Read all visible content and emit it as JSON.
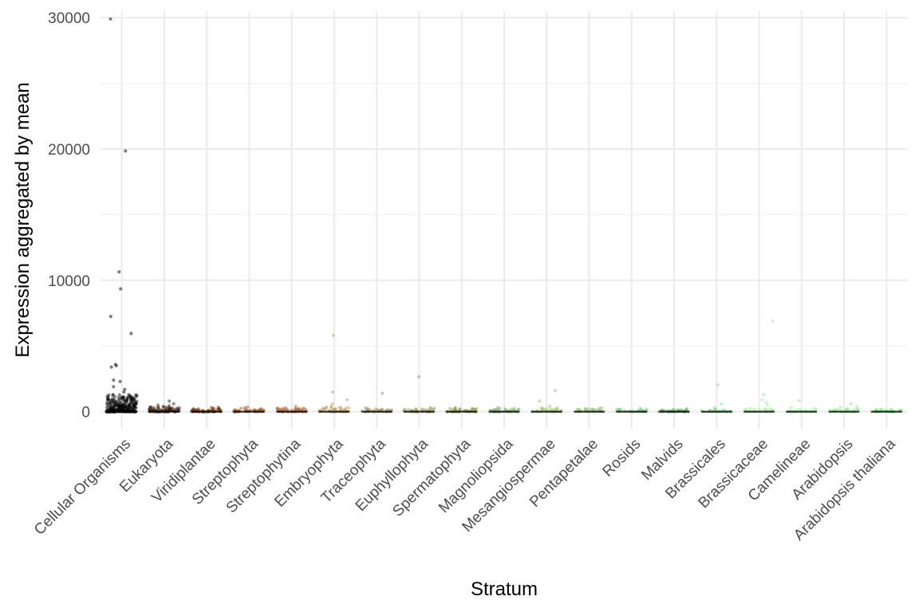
{
  "chart_data": {
    "type": "scatter",
    "subtype": "jitter-strip",
    "xlabel": "Stratum",
    "ylabel": "Expression aggregated by mean",
    "ylim": [
      -1300,
      30500
    ],
    "yticks": [
      0,
      10000,
      20000,
      30000
    ],
    "ytick_labels": [
      "0",
      "10000",
      "20000",
      "30000"
    ],
    "grid": true,
    "legend": "none",
    "categories": [
      "Cellular Organisms",
      "Eukaryota",
      "Viridiplantae",
      "Streptophyta",
      "Streptophytina",
      "Embryophyta",
      "Traceophyta",
      "Euphyllophyta",
      "Spermatophyta",
      "Magnoliopsida",
      "Mesangiospermae",
      "Pentapetalae",
      "Rosids",
      "Malvids",
      "Brassicales",
      "Brassicaceae",
      "Camelineae",
      "Arabidopsis",
      "Arabidopsis thaliana"
    ],
    "colors": [
      "#000000",
      "#3a200c",
      "#6b3510",
      "#9a5525",
      "#a8693c",
      "#c2a070",
      "#a09068",
      "#9a9a5e",
      "#8a9a5a",
      "#7fa870",
      "#a0c070",
      "#90c080",
      "#80c888",
      "#50a050",
      "#90d890",
      "#a8e6a0",
      "#a0e8a0",
      "#90e890",
      "#70e070"
    ],
    "outliers": [
      [
        29900,
        19850,
        10650,
        9350,
        7250,
        5950,
        3600,
        3500,
        3400,
        2400,
        2300,
        1900,
        1700,
        1500,
        1300,
        1200,
        1100,
        1000
      ],
      [
        800,
        600,
        500,
        450,
        400,
        350,
        300
      ],
      [
        350,
        300,
        250,
        200
      ],
      [
        350,
        300,
        250
      ],
      [
        400,
        300,
        250,
        200
      ],
      [
        5800,
        1500,
        900,
        600,
        400,
        300
      ],
      [
        1400,
        300
      ],
      [
        2650,
        300
      ],
      [
        300,
        250,
        200
      ],
      [
        300,
        250,
        200
      ],
      [
        1600,
        800,
        400
      ],
      [
        300,
        250
      ],
      [
        250,
        200
      ],
      [
        200,
        150
      ],
      [
        2050,
        600,
        300
      ],
      [
        6900,
        1300,
        900,
        700,
        500
      ],
      [
        850,
        300
      ],
      [
        600,
        400,
        300
      ],
      [
        200,
        150
      ]
    ],
    "bulk_max": [
      1300,
      350,
      250,
      250,
      300,
      350,
      250,
      250,
      250,
      250,
      300,
      250,
      200,
      150,
      200,
      300,
      250,
      250,
      150
    ],
    "bulk_count": [
      260,
      80,
      60,
      45,
      55,
      65,
      40,
      40,
      45,
      40,
      40,
      35,
      35,
      30,
      35,
      45,
      35,
      35,
      30
    ]
  }
}
